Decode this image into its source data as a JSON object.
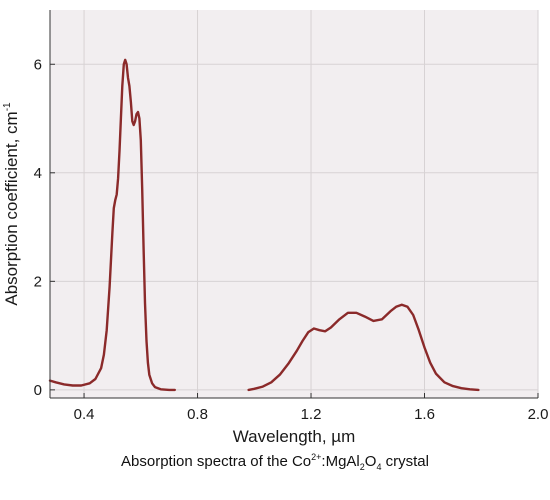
{
  "chart_data": {
    "type": "line",
    "title": "",
    "xlabel": "Wavelength, µm",
    "ylabel": "Absorption coefficient, cm",
    "ylabel_superscript": "-1",
    "xlim": [
      0.28,
      2.0
    ],
    "ylim": [
      -0.15,
      7.0
    ],
    "x_ticks": [
      0.4,
      0.8,
      1.2,
      1.6,
      2.0
    ],
    "x_tick_labels": [
      "0.4",
      "0.8",
      "1.2",
      "1.6",
      "2.0"
    ],
    "y_ticks": [
      0,
      2,
      4,
      6
    ],
    "y_tick_labels": [
      "0",
      "2",
      "4",
      "6"
    ],
    "grid": true,
    "line_color": "#8b2a2a",
    "plot_background": "#f2eef0",
    "grid_color": "#d7d2d4",
    "series": [
      {
        "segments": [
          {
            "x": [
              0.28,
              0.3,
              0.33,
              0.36,
              0.39,
              0.42,
              0.44,
              0.46,
              0.47,
              0.48,
              0.49,
              0.5,
              0.505,
              0.51,
              0.515,
              0.52,
              0.525,
              0.53,
              0.535,
              0.54,
              0.545,
              0.55,
              0.555,
              0.56,
              0.565,
              0.57,
              0.575,
              0.58,
              0.585,
              0.59,
              0.595,
              0.6,
              0.605,
              0.61,
              0.615,
              0.62,
              0.625,
              0.63,
              0.64,
              0.65,
              0.67,
              0.7,
              0.72
            ],
            "y": [
              0.17,
              0.14,
              0.1,
              0.08,
              0.08,
              0.12,
              0.2,
              0.4,
              0.65,
              1.1,
              1.9,
              2.9,
              3.35,
              3.5,
              3.6,
              3.9,
              4.4,
              5.0,
              5.6,
              6.0,
              6.08,
              6.0,
              5.75,
              5.6,
              5.3,
              4.95,
              4.88,
              4.95,
              5.08,
              5.12,
              5.0,
              4.6,
              3.7,
              2.6,
              1.6,
              0.9,
              0.5,
              0.28,
              0.12,
              0.05,
              0.01,
              0.0,
              0.0
            ]
          },
          {
            "x": [
              0.98,
              1.0,
              1.03,
              1.06,
              1.09,
              1.12,
              1.15,
              1.17,
              1.19,
              1.21,
              1.23,
              1.25,
              1.27,
              1.3,
              1.33,
              1.36,
              1.39,
              1.42,
              1.45,
              1.48,
              1.5,
              1.52,
              1.54,
              1.56,
              1.58,
              1.6,
              1.62,
              1.64,
              1.67,
              1.7,
              1.73,
              1.76,
              1.79
            ],
            "y": [
              0.0,
              0.02,
              0.06,
              0.14,
              0.28,
              0.48,
              0.72,
              0.9,
              1.06,
              1.13,
              1.1,
              1.08,
              1.15,
              1.3,
              1.42,
              1.42,
              1.35,
              1.27,
              1.3,
              1.45,
              1.53,
              1.57,
              1.53,
              1.38,
              1.1,
              0.78,
              0.5,
              0.3,
              0.14,
              0.07,
              0.03,
              0.01,
              0.0
            ]
          }
        ]
      }
    ]
  },
  "caption": {
    "prefix": "Absorption spectra of the Co",
    "co_sup": "2+",
    "mid": ":MgAl",
    "al_sub": "2",
    "o": "O",
    "o_sub": "4",
    "suffix": " crystal"
  }
}
